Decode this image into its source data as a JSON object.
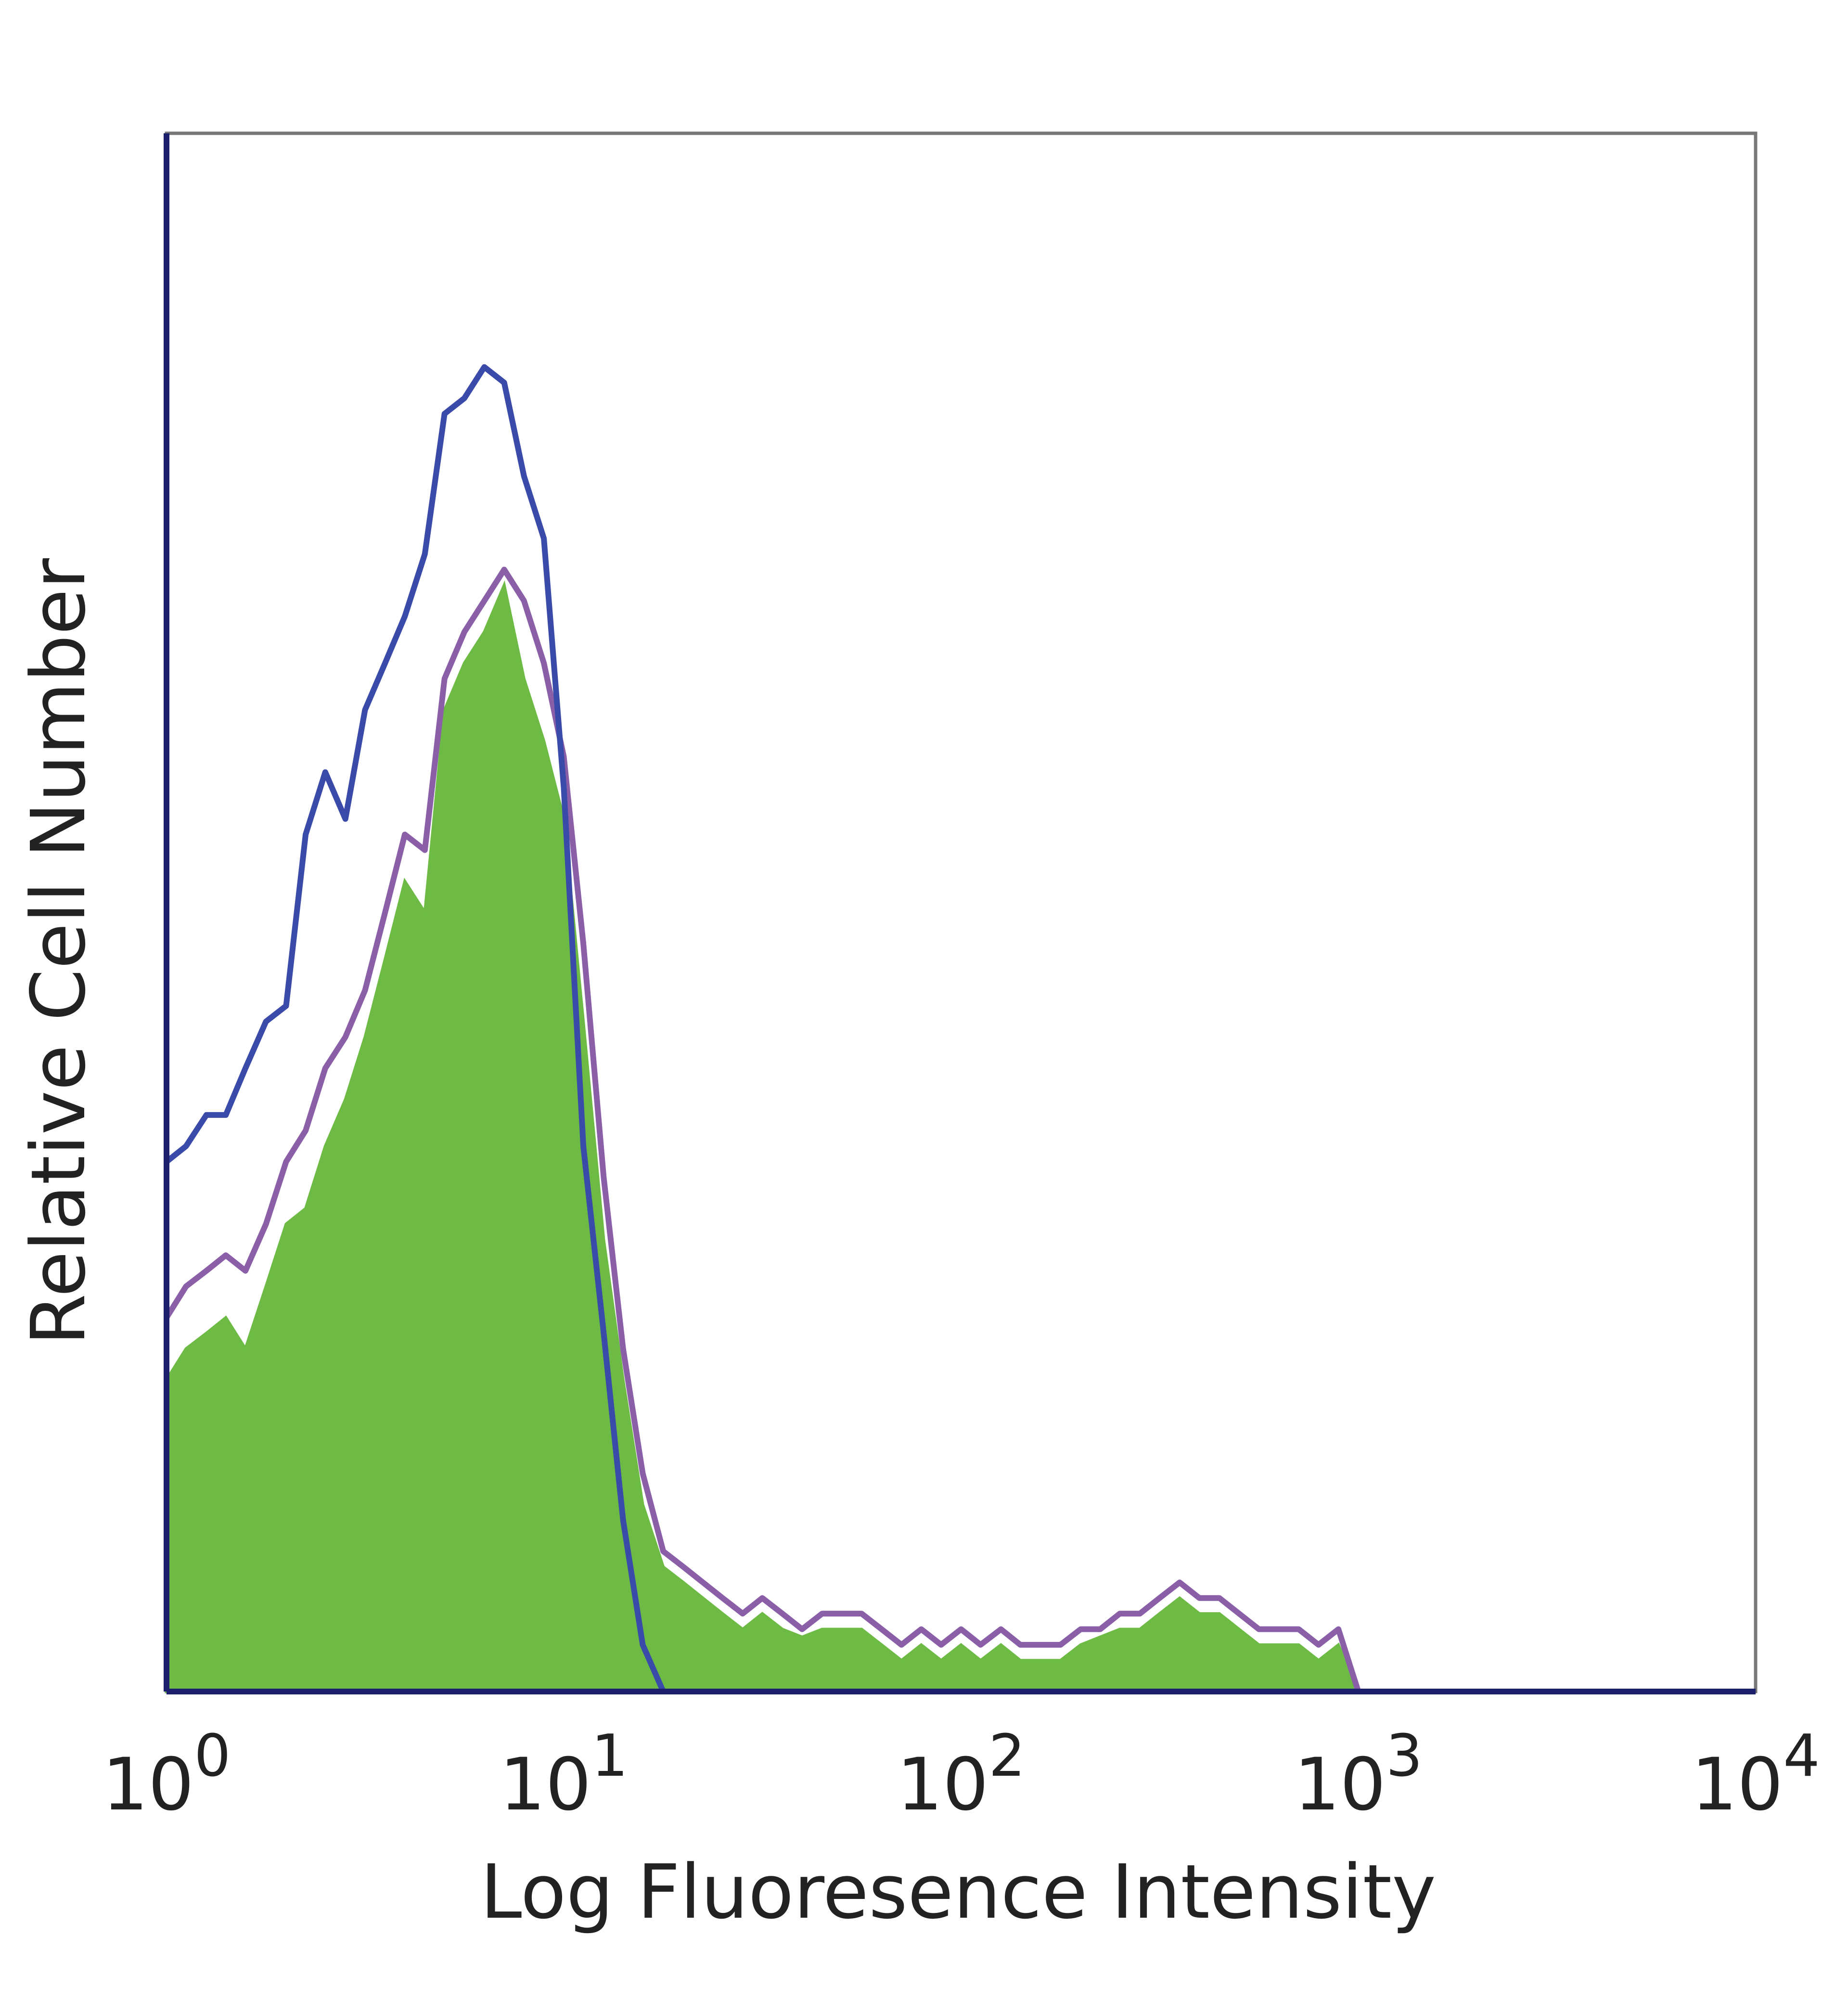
{
  "chart_data": {
    "type": "histogram-overlay",
    "x_label": "Log Fluoresence Intensity",
    "y_label": "Relative Cell Number",
    "xscale": "log",
    "xlim": [
      1,
      10000
    ],
    "ylim": [
      0,
      100
    ],
    "xticks": [
      {
        "value": 1,
        "label": "10",
        "exponent": "0"
      },
      {
        "value": 10,
        "label": "10",
        "exponent": "1"
      },
      {
        "value": 100,
        "label": "10",
        "exponent": "2"
      },
      {
        "value": 1000,
        "label": "10",
        "exponent": "3"
      },
      {
        "value": 10000,
        "label": "10",
        "exponent": "4"
      }
    ],
    "x": [
      1,
      1.12,
      1.26,
      1.41,
      1.58,
      1.78,
      2.0,
      2.24,
      2.51,
      2.82,
      3.16,
      3.55,
      3.98,
      4.47,
      5.01,
      5.62,
      6.31,
      7.08,
      7.94,
      8.91,
      10,
      11.2,
      12.6,
      14.1,
      15.8,
      17.8,
      20,
      22.4,
      25.1,
      28.2,
      31.6,
      35.5,
      39.8,
      44.7,
      50.1,
      56.2,
      63.1,
      70.8,
      79.4,
      89.1,
      100,
      112,
      126,
      141,
      158,
      178,
      200,
      224,
      251,
      282,
      316,
      355,
      398,
      447,
      501,
      562,
      631,
      708,
      794,
      891,
      1000
    ],
    "series": [
      {
        "color": "#6dbb45",
        "fill": true,
        "values": [
          20,
          22,
          23,
          24,
          22,
          26,
          30,
          31,
          35,
          38,
          42,
          47,
          52,
          50,
          63,
          66,
          68,
          71,
          65,
          61,
          56,
          43,
          29,
          20,
          12,
          8,
          7,
          6,
          5,
          4,
          5,
          4,
          3.5,
          4,
          4,
          4,
          3,
          2,
          3,
          2,
          3,
          2,
          3,
          2,
          2,
          2,
          3,
          3.5,
          4,
          4,
          5,
          6,
          5,
          5,
          4,
          3,
          3,
          3,
          2,
          3,
          0
        ]
      },
      {
        "color": "#8a5fa8",
        "fill": false,
        "values": [
          24,
          26,
          27,
          28,
          27,
          30,
          34,
          36,
          40,
          42,
          45,
          50,
          55,
          54,
          65,
          68,
          70,
          72,
          70,
          66,
          60,
          48,
          33,
          22,
          14,
          9,
          8,
          7,
          6,
          5,
          6,
          5,
          4,
          5,
          5,
          5,
          4,
          3,
          4,
          3,
          4,
          3,
          4,
          3,
          3,
          3,
          4,
          4,
          5,
          5,
          6,
          7,
          6,
          6,
          5,
          4,
          4,
          4,
          3,
          4,
          0
        ]
      },
      {
        "color": "#3a4aa8",
        "fill": false,
        "values": [
          34,
          35,
          37,
          37,
          40,
          43,
          44,
          55,
          59,
          56,
          63,
          66,
          69,
          73,
          82,
          83,
          85,
          84,
          78,
          74,
          58,
          35,
          23,
          11,
          3,
          0,
          0,
          null,
          null,
          null,
          null,
          null,
          null,
          null,
          null,
          null,
          null,
          null,
          null,
          null,
          null,
          null,
          null,
          null,
          null,
          null,
          null,
          null,
          null,
          null,
          null,
          null,
          null,
          null,
          null,
          null,
          null,
          null,
          null,
          null,
          null
        ]
      }
    ]
  }
}
